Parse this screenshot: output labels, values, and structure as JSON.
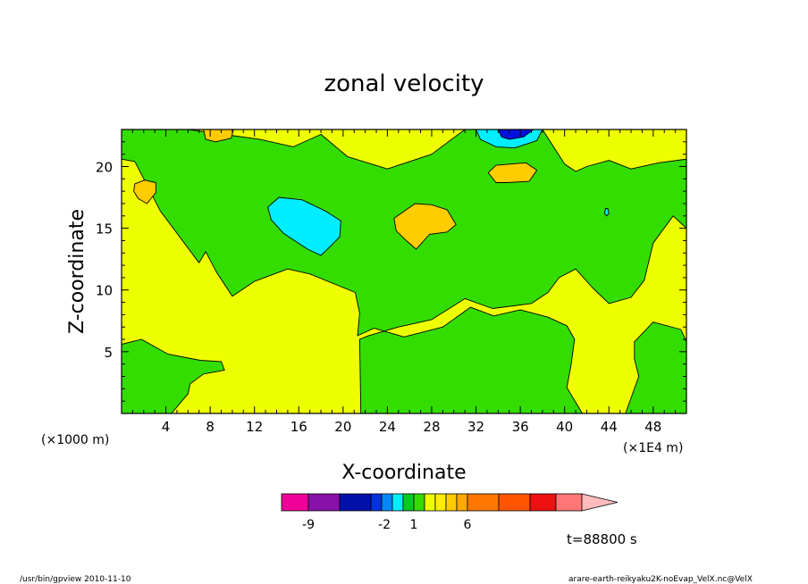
{
  "chart_data": {
    "type": "heatmap",
    "title": "zonal velocity",
    "xlabel": "X-coordinate",
    "ylabel": "Z-coordinate",
    "x_unit_left": "(×1000 m)",
    "x_unit_right": "(×1E4 m)",
    "x_ticks": [
      "4",
      "8",
      "12",
      "16",
      "20",
      "24",
      "28",
      "32",
      "36",
      "40",
      "44",
      "48"
    ],
    "y_ticks": [
      "5",
      "10",
      "15",
      "20"
    ],
    "xlim": [
      0,
      51
    ],
    "ylim": [
      0,
      23
    ],
    "background_color": "#eeff00",
    "contour_line_color": "#000000",
    "regions": [
      {
        "level": "green",
        "color": "#33dd00",
        "points": [
          [
            0,
            23
          ],
          [
            6,
            23
          ],
          [
            12.5,
            22.2
          ],
          [
            15.5,
            21.6
          ],
          [
            18,
            22.6
          ],
          [
            20.4,
            20.8
          ],
          [
            24,
            19.8
          ],
          [
            28,
            21
          ],
          [
            31,
            23
          ],
          [
            38,
            23
          ],
          [
            40,
            20.2
          ],
          [
            41,
            19.6
          ],
          [
            42,
            20
          ],
          [
            44,
            20.5
          ],
          [
            46,
            19.8
          ],
          [
            48.5,
            20.3
          ],
          [
            51,
            20.6
          ],
          [
            51,
            15
          ],
          [
            49.8,
            16
          ],
          [
            48,
            13.8
          ],
          [
            47.2,
            10.8
          ],
          [
            46,
            9.4
          ],
          [
            44,
            8.9
          ],
          [
            42.5,
            10.2
          ],
          [
            41,
            11.7
          ],
          [
            39.5,
            11
          ],
          [
            38.5,
            9.8
          ],
          [
            37,
            8.9
          ],
          [
            33.5,
            8.5
          ],
          [
            31,
            9.3
          ],
          [
            28,
            7.6
          ],
          [
            25,
            7
          ],
          [
            22.3,
            6.3
          ],
          [
            21.5,
            6
          ],
          [
            21.6,
            0
          ],
          [
            41.6,
            0
          ],
          [
            40.2,
            2.1
          ],
          [
            40.6,
            4
          ],
          [
            40.9,
            6
          ],
          [
            40.2,
            7.1
          ],
          [
            38.5,
            7.8
          ],
          [
            36,
            8.4
          ],
          [
            33.6,
            7.9
          ],
          [
            31.5,
            8.6
          ],
          [
            29,
            7
          ],
          [
            25.5,
            6.2
          ],
          [
            22.8,
            6.9
          ],
          [
            21.3,
            6.3
          ],
          [
            21.5,
            8.1
          ],
          [
            21.1,
            9.8
          ],
          [
            17,
            11.3
          ],
          [
            15,
            11.7
          ],
          [
            12,
            10.7
          ],
          [
            10,
            9.5
          ],
          [
            8.6,
            11.4
          ],
          [
            7.6,
            13.1
          ],
          [
            7,
            12.2
          ],
          [
            3.5,
            16.4
          ],
          [
            1.2,
            20.4
          ],
          [
            0,
            20.6
          ]
        ]
      },
      {
        "level": "green",
        "color": "#33dd00",
        "points": [
          [
            0,
            5.6
          ],
          [
            1.8,
            6
          ],
          [
            4.2,
            4.8
          ],
          [
            7.1,
            4.3
          ],
          [
            9,
            4.2
          ],
          [
            9.3,
            3.5
          ],
          [
            7.4,
            3.2
          ],
          [
            6.2,
            2.4
          ],
          [
            6,
            1.6
          ],
          [
            4.5,
            0
          ],
          [
            0,
            0
          ]
        ]
      },
      {
        "level": "green",
        "color": "#33dd00",
        "points": [
          [
            45.5,
            0
          ],
          [
            46.7,
            3
          ],
          [
            46.3,
            4.4
          ],
          [
            46.3,
            5.8
          ],
          [
            48,
            7.4
          ],
          [
            50.5,
            6.8
          ],
          [
            51,
            5.8
          ],
          [
            51,
            0
          ]
        ]
      },
      {
        "level": "cyan",
        "color": "#00eeff",
        "points": [
          [
            13.2,
            16.7
          ],
          [
            14.2,
            17.5
          ],
          [
            16.3,
            17.3
          ],
          [
            18.4,
            16.4
          ],
          [
            19.8,
            15.6
          ],
          [
            19.7,
            14.3
          ],
          [
            18.7,
            13.4
          ],
          [
            18,
            12.8
          ],
          [
            16.8,
            13.3
          ],
          [
            14.6,
            14.6
          ],
          [
            13.5,
            15.7
          ]
        ]
      },
      {
        "level": "cyan",
        "color": "#00eeff",
        "points": [
          [
            32,
            23
          ],
          [
            38,
            23
          ],
          [
            37.5,
            22.1
          ],
          [
            35.5,
            21.5
          ],
          [
            33.8,
            21.6
          ],
          [
            32.4,
            22.2
          ]
        ]
      },
      {
        "level": "blue",
        "color": "#0011dd",
        "points": [
          [
            34,
            23
          ],
          [
            37.2,
            23
          ],
          [
            36.3,
            22.4
          ],
          [
            35,
            22.2
          ],
          [
            34.3,
            22.4
          ]
        ]
      },
      {
        "level": "orange",
        "color": "#ffcc00",
        "points": [
          [
            24.6,
            15.8
          ],
          [
            26.5,
            17
          ],
          [
            28,
            16.9
          ],
          [
            29.4,
            16.5
          ],
          [
            30.2,
            15.3
          ],
          [
            29.4,
            14.7
          ],
          [
            27.8,
            14.5
          ],
          [
            26.6,
            13.3
          ],
          [
            25.7,
            14
          ],
          [
            24.8,
            14.8
          ]
        ]
      },
      {
        "level": "orange",
        "color": "#ffcc00",
        "points": [
          [
            1.2,
            18.6
          ],
          [
            2.1,
            18.9
          ],
          [
            3.1,
            18.7
          ],
          [
            3.1,
            17.9
          ],
          [
            2.3,
            17
          ],
          [
            1.5,
            17.4
          ],
          [
            1.1,
            18
          ]
        ]
      },
      {
        "level": "orange",
        "color": "#ffcc00",
        "points": [
          [
            33.1,
            19.5
          ],
          [
            33.8,
            20.1
          ],
          [
            36.5,
            20.3
          ],
          [
            37.5,
            19.7
          ],
          [
            36.8,
            18.8
          ],
          [
            34.8,
            18.7
          ],
          [
            33.8,
            18.7
          ]
        ]
      },
      {
        "level": "orange",
        "color": "#ffcc00",
        "points": [
          [
            7.4,
            23
          ],
          [
            10.1,
            23
          ],
          [
            9.9,
            22.3
          ],
          [
            8.5,
            22
          ],
          [
            7.6,
            22.2
          ]
        ]
      },
      {
        "level": "cyan",
        "color": "#00eeff",
        "points": [
          [
            43.7,
            16.6
          ],
          [
            43.9,
            16.6
          ],
          [
            44.0,
            16.2
          ],
          [
            43.8,
            16.0
          ],
          [
            43.6,
            16.2
          ]
        ]
      }
    ],
    "colorbar": {
      "labels": [
        "-9",
        "-2",
        "1",
        "6"
      ],
      "label_positions": [
        1,
        8,
        10,
        13
      ],
      "colors": [
        "#ee0099",
        "#8811aa",
        "#0011aa",
        "#0033dd",
        "#0088ff",
        "#00eeff",
        "#00cc22",
        "#33dd00",
        "#eeff00",
        "#ffee00",
        "#ffcc00",
        "#ffaa00",
        "#ff7700",
        "#ff5500",
        "#ee1111",
        "#ff7777",
        "#ffbbbb"
      ]
    }
  },
  "annotations": {
    "time": "t=88800 s",
    "footer_left": "/usr/bin/gpview   2010-11-10",
    "footer_right": "arare-earth-reikyaku2K-noEvap_VelX.nc@VelX"
  }
}
